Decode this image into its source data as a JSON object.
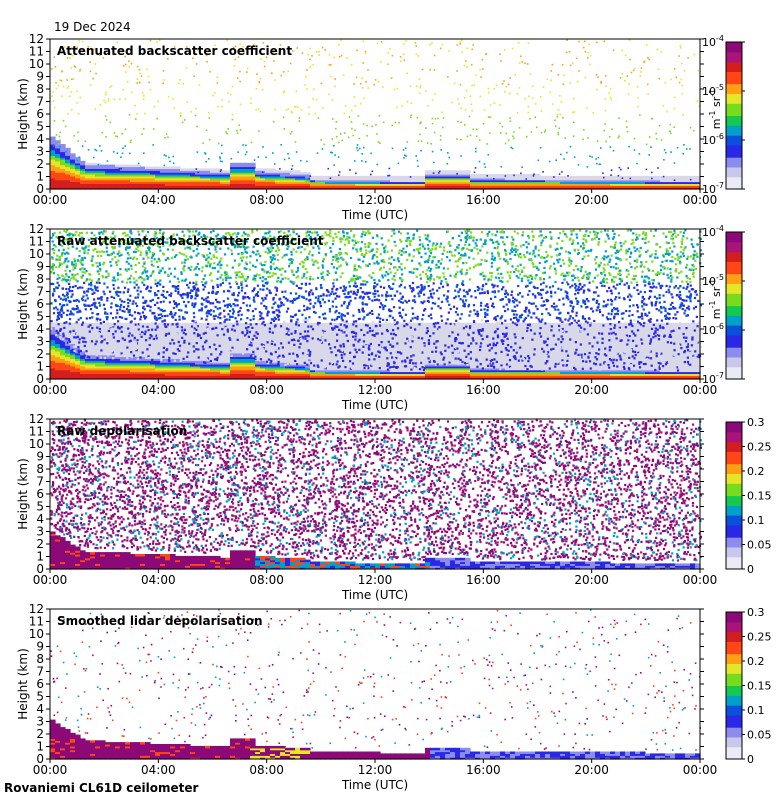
{
  "date": "19 Dec 2024",
  "footer": "Rovaniemi CL61D ceilometer",
  "colors": {
    "axis": "#000000",
    "frame_bg": "#ffffff",
    "clear_air": "#d8d8e8",
    "colormap": [
      "#ebebf5",
      "#c8c8ec",
      "#8c8cf0",
      "#2828e6",
      "#0a50dc",
      "#00a0c8",
      "#14c850",
      "#78dc1e",
      "#e6e628",
      "#ffa014",
      "#ff4614",
      "#d21e1e",
      "#aa1478",
      "#8c0a78"
    ]
  },
  "chart_data": [
    {
      "type": "heatmap",
      "title": "Attenuated backscatter coefficient",
      "xlabel": "Time (UTC)",
      "ylabel": "Height (km)",
      "x_ticks": [
        "00:00",
        "04:00",
        "08:00",
        "12:00",
        "16:00",
        "20:00",
        "00:00"
      ],
      "y_ticks": [
        "0",
        "1",
        "2",
        "3",
        "4",
        "5",
        "6",
        "7",
        "8",
        "9",
        "10",
        "11",
        "12"
      ],
      "ylim": [
        0,
        12
      ],
      "colorbar": {
        "scale": "log",
        "ticks": [
          {
            "base": "10",
            "exp": "-7"
          },
          {
            "base": "10",
            "exp": "-6"
          },
          {
            "base": "10",
            "exp": "-5"
          },
          {
            "base": "10",
            "exp": "-4"
          }
        ],
        "unit": {
          "a": "m",
          "a_exp": "-1",
          "b": "sr",
          "b_exp": "-1"
        }
      },
      "profile": "backscatter"
    },
    {
      "type": "heatmap",
      "title": "Raw attenuated backscatter coefficient",
      "xlabel": "Time (UTC)",
      "ylabel": "Height (km)",
      "x_ticks": [
        "00:00",
        "04:00",
        "08:00",
        "12:00",
        "16:00",
        "20:00",
        "00:00"
      ],
      "y_ticks": [
        "0",
        "1",
        "2",
        "3",
        "4",
        "5",
        "6",
        "7",
        "8",
        "9",
        "10",
        "11",
        "12"
      ],
      "ylim": [
        0,
        12
      ],
      "colorbar": {
        "scale": "log",
        "ticks": [
          {
            "base": "10",
            "exp": "-7"
          },
          {
            "base": "10",
            "exp": "-6"
          },
          {
            "base": "10",
            "exp": "-5"
          },
          {
            "base": "10",
            "exp": "-4"
          }
        ],
        "unit": {
          "a": "m",
          "a_exp": "-1",
          "b": "sr",
          "b_exp": "-1"
        }
      },
      "profile": "raw_backscatter"
    },
    {
      "type": "heatmap",
      "title": "Raw depolarisation",
      "xlabel": "Time (UTC)",
      "ylabel": "Height (km)",
      "x_ticks": [
        "00:00",
        "04:00",
        "08:00",
        "12:00",
        "16:00",
        "20:00",
        "00:00"
      ],
      "y_ticks": [
        "0",
        "1",
        "2",
        "3",
        "4",
        "5",
        "6",
        "7",
        "8",
        "9",
        "10",
        "11",
        "12"
      ],
      "ylim": [
        0,
        12
      ],
      "colorbar": {
        "scale": "linear",
        "ticks": [
          "0",
          "0.05",
          "0.1",
          "0.15",
          "0.2",
          "0.25",
          "0.3"
        ]
      },
      "profile": "raw_depol"
    },
    {
      "type": "heatmap",
      "title": "Smoothed lidar depolarisation",
      "xlabel": "Time (UTC)",
      "ylabel": "Height (km)",
      "x_ticks": [
        "00:00",
        "04:00",
        "08:00",
        "12:00",
        "16:00",
        "20:00",
        "00:00"
      ],
      "y_ticks": [
        "0",
        "1",
        "2",
        "3",
        "4",
        "5",
        "6",
        "7",
        "8",
        "9",
        "10",
        "11",
        "12"
      ],
      "ylim": [
        0,
        12
      ],
      "colorbar": {
        "scale": "linear",
        "ticks": [
          "0",
          "0.05",
          "0.1",
          "0.15",
          "0.2",
          "0.25",
          "0.3"
        ]
      },
      "profile": "smoothed_depol"
    }
  ]
}
